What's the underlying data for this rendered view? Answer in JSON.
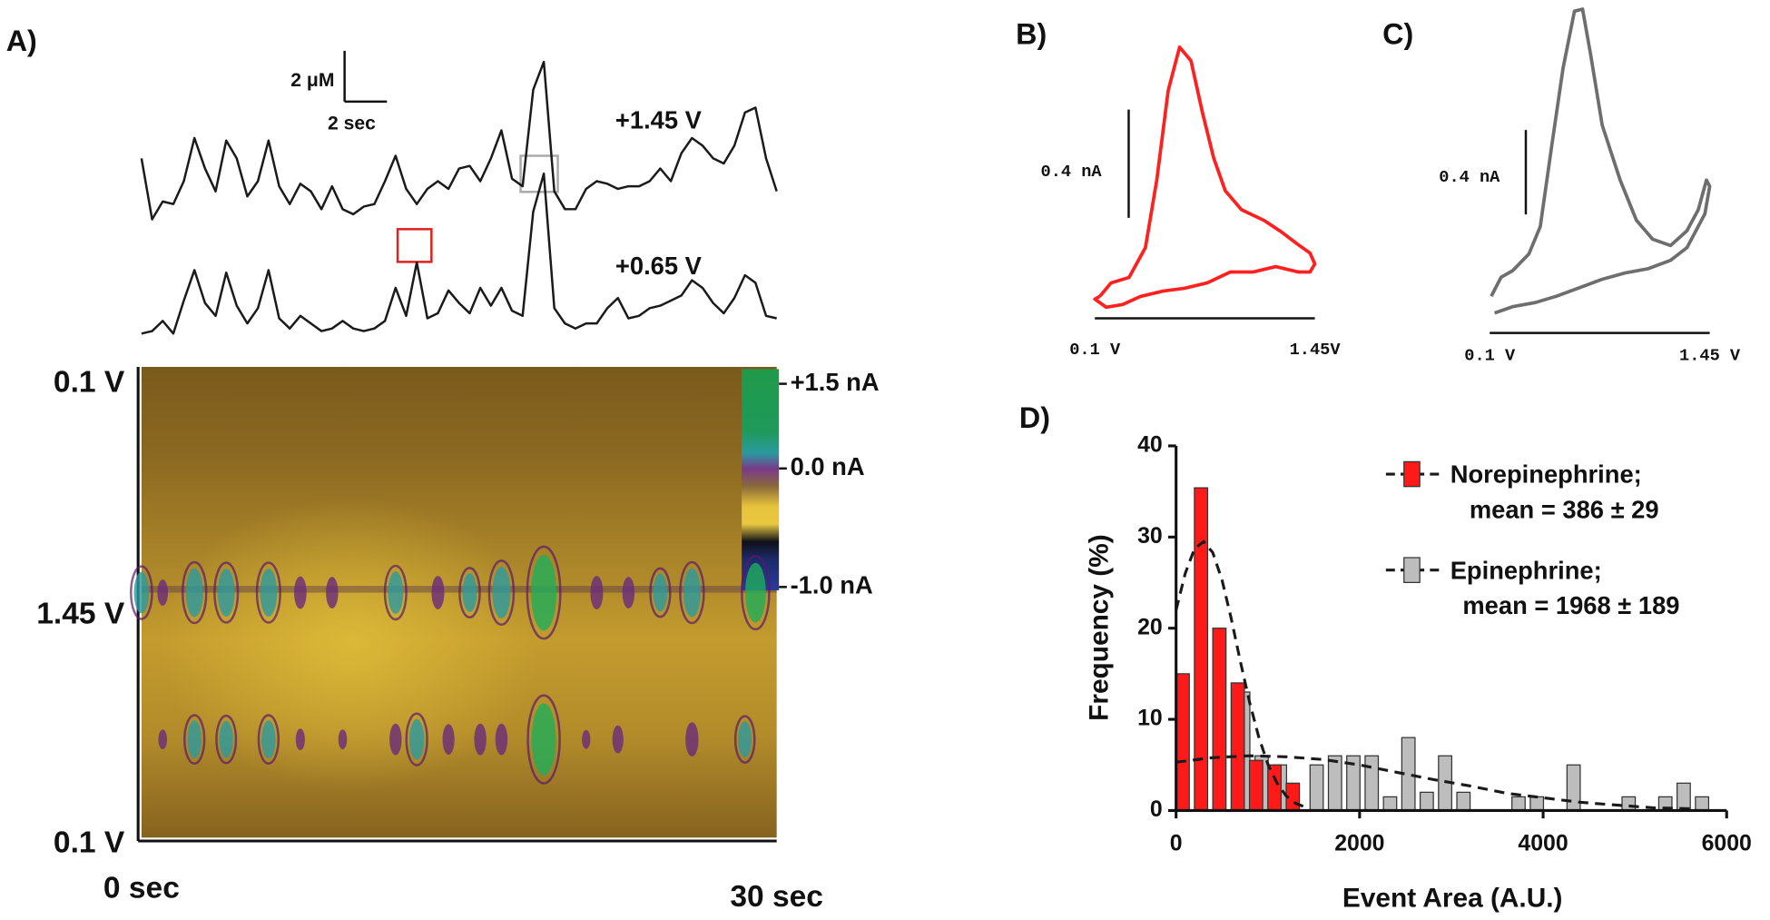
{
  "chart_data": [
    {
      "type": "trace",
      "panel": "A)",
      "x": [
        0,
        0.5,
        1,
        1.5,
        2,
        2.5,
        3,
        3.5,
        4,
        4.5,
        5,
        5.5,
        6,
        6.5,
        7,
        7.5,
        8,
        8.5,
        9,
        9.5,
        10,
        10.5,
        11,
        11.5,
        12,
        12.5,
        13,
        13.5,
        14,
        14.5,
        15,
        15.5,
        16,
        16.5,
        17,
        17.5,
        18,
        18.5,
        19,
        19.5,
        20,
        20.5,
        21,
        21.5,
        22,
        22.5,
        23,
        23.5,
        24,
        24.5,
        25,
        25.5,
        26,
        26.5,
        27,
        27.5,
        28,
        28.5,
        29,
        29.5,
        30
      ],
      "xlim": [
        0,
        30
      ],
      "series": [
        {
          "name": "+1.45 V",
          "color": "#1a1a1a",
          "values": [
            3.1,
            0.7,
            1.4,
            1.3,
            2.2,
            3.9,
            2.7,
            1.8,
            3.8,
            3.1,
            1.6,
            2.2,
            3.8,
            2.0,
            1.3,
            2.1,
            1.8,
            1.1,
            2.0,
            1.1,
            0.9,
            1.2,
            1.3,
            2.2,
            3.2,
            1.9,
            1.3,
            1.9,
            2.2,
            1.9,
            2.7,
            2.8,
            2.2,
            3.1,
            4.2,
            2.3,
            2.0,
            5.8,
            6.9,
            1.8,
            1.1,
            1.1,
            1.9,
            2.2,
            2.1,
            1.9,
            2.0,
            2.0,
            2.2,
            2.7,
            2.2,
            3.3,
            3.9,
            3.6,
            3.1,
            2.9,
            3.6,
            4.9,
            5.1,
            3.1,
            1.8
          ]
        },
        {
          "name": "+0.65 V",
          "color": "#1a1a1a",
          "values": [
            0.2,
            0.3,
            0.7,
            0.2,
            1.5,
            2.7,
            1.4,
            0.9,
            2.6,
            1.3,
            0.6,
            1.2,
            2.7,
            0.8,
            0.4,
            0.9,
            0.6,
            0.3,
            0.4,
            0.7,
            0.4,
            0.3,
            0.4,
            0.7,
            2.0,
            0.9,
            3.0,
            0.8,
            1.0,
            1.9,
            1.4,
            1.0,
            2.0,
            1.3,
            2.0,
            1.1,
            0.9,
            5.0,
            6.5,
            1.2,
            0.6,
            0.4,
            0.6,
            0.6,
            1.2,
            1.6,
            0.8,
            0.9,
            1.2,
            1.3,
            1.5,
            1.7,
            2.3,
            2.0,
            1.4,
            1.0,
            1.6,
            2.5,
            2.2,
            0.9,
            0.8
          ]
        }
      ],
      "scale_bars": [
        {
          "value": 2,
          "label": "2 μM"
        },
        {
          "value": 2,
          "label": "2 sec"
        }
      ]
    },
    {
      "type": "heatmap",
      "ylabels": [
        "0.1 V",
        "1.45 V",
        "0.1 V"
      ],
      "xlabels": [
        "0 sec",
        "30 sec"
      ],
      "colorbar": [
        {
          "value": 1.5,
          "label": "+1.5 nA"
        },
        {
          "value": 0,
          "label": "0.0 nA"
        },
        {
          "value": -1.0,
          "label": "-1.0 nA"
        }
      ]
    },
    {
      "type": "cv",
      "panel": "B)",
      "color": "#ff2020",
      "x": [
        0.13,
        0.2,
        0.31,
        0.41,
        0.48,
        0.55,
        0.62,
        0.69,
        0.76,
        0.83,
        0.9,
        1.0,
        1.14,
        1.24,
        1.35,
        1.42,
        1.45,
        1.42,
        1.35,
        1.21,
        1.07,
        0.93,
        0.79,
        0.65,
        0.52,
        0.38,
        0.27,
        0.17,
        0.1,
        0.13
      ],
      "values": [
        0.01,
        0.06,
        0.08,
        0.19,
        0.44,
        0.77,
        0.93,
        0.88,
        0.69,
        0.52,
        0.4,
        0.33,
        0.29,
        0.25,
        0.2,
        0.17,
        0.13,
        0.1,
        0.1,
        0.12,
        0.1,
        0.1,
        0.06,
        0.04,
        0.03,
        0.01,
        -0.02,
        -0.03,
        0.0,
        0.01
      ],
      "xlim": [
        0.1,
        1.45
      ],
      "ylim": [
        -0.1,
        1.0
      ],
      "xticks": [
        {
          "value": 0.1,
          "label": "0.1 V"
        },
        {
          "value": 1.45,
          "label": "1.45V"
        }
      ],
      "scale_bar": {
        "value": 0.4,
        "label": "0.4 nA"
      }
    },
    {
      "type": "cv",
      "panel": "C)",
      "color": "#6e6e6e",
      "x": [
        0.11,
        0.17,
        0.24,
        0.34,
        0.41,
        0.48,
        0.55,
        0.62,
        0.67,
        0.72,
        0.79,
        0.9,
        1.0,
        1.1,
        1.21,
        1.31,
        1.38,
        1.43,
        1.45,
        1.42,
        1.31,
        1.21,
        1.07,
        0.93,
        0.79,
        0.65,
        0.51,
        0.38,
        0.24,
        0.13
      ],
      "values": [
        0.03,
        0.12,
        0.15,
        0.23,
        0.36,
        0.74,
        1.11,
        1.38,
        1.39,
        1.17,
        0.84,
        0.58,
        0.39,
        0.3,
        0.27,
        0.34,
        0.44,
        0.58,
        0.55,
        0.42,
        0.26,
        0.2,
        0.16,
        0.14,
        0.11,
        0.07,
        0.03,
        0.0,
        -0.02,
        -0.05
      ],
      "xlim": [
        0.1,
        1.45
      ],
      "ylim": [
        -0.1,
        1.4
      ],
      "xticks": [
        {
          "value": 0.1,
          "label": "0.1 V"
        },
        {
          "value": 1.45,
          "label": "1.45 V"
        }
      ],
      "scale_bar": {
        "value": 0.4,
        "label": "0.4 nA"
      }
    },
    {
      "type": "histogram",
      "panel": "D)",
      "bins": [
        0,
        200,
        400,
        600,
        800,
        1000,
        1200,
        1400,
        1600,
        1800,
        2000,
        2200,
        2400,
        2600,
        2800,
        3000,
        3200,
        3400,
        3600,
        3800,
        4000,
        4200,
        4400,
        4600,
        4800,
        5000,
        5200,
        5400,
        5600,
        5800
      ],
      "series": [
        {
          "name": "Norepinephrine;",
          "detail": "mean = 386 ± 29",
          "color": "#ff1a1a",
          "values": [
            15,
            35.4,
            20,
            14,
            5.5,
            5,
            3,
            0,
            0,
            0,
            0,
            0,
            0,
            0,
            0,
            0,
            0,
            0,
            0,
            0,
            0,
            0,
            0,
            0,
            0,
            0,
            0,
            0,
            0
          ],
          "fit": {
            "x": [
              0,
              100,
              200,
              300,
              400,
              500,
              600,
              700,
              800,
              900,
              1000,
              1100,
              1200,
              1300,
              1400
            ],
            "values": [
              22.0,
              26.0,
              28.7,
              29.5,
              28.3,
              25.3,
              21.1,
              16.4,
              11.9,
              8.1,
              5.1,
              3.0,
              1.6,
              0.8,
              0.4
            ]
          }
        },
        {
          "name": "Epinephrine;",
          "detail": "mean = 1968 ± 189",
          "color": "#bdbdbd",
          "values": [
            0,
            0,
            0,
            13,
            6,
            5,
            0,
            5,
            6,
            6,
            6,
            1.5,
            8,
            2,
            6,
            2,
            0,
            0,
            1.5,
            1.5,
            0,
            5,
            0,
            0,
            1.5,
            0,
            1.5,
            3,
            1.5
          ],
          "fit": {
            "x": [
              0,
              400,
              800,
              1200,
              1600,
              2000,
              2400,
              2800,
              3200,
              3600,
              4000,
              4400,
              4800,
              5200,
              5600
            ],
            "values": [
              5.3,
              5.8,
              6.0,
              5.9,
              5.6,
              5.0,
              4.2,
              3.4,
              2.7,
              1.9,
              1.4,
              0.9,
              0.6,
              0.3,
              0.2
            ]
          }
        }
      ],
      "xlim": [
        0,
        6000
      ],
      "ylim": [
        0,
        40
      ],
      "xticks": [
        0,
        2000,
        4000,
        6000
      ],
      "yticks": [
        0,
        10,
        20,
        30,
        40
      ],
      "xlabel": "Event Area (A.U.)",
      "ylabel": "Frequency (%)"
    }
  ]
}
